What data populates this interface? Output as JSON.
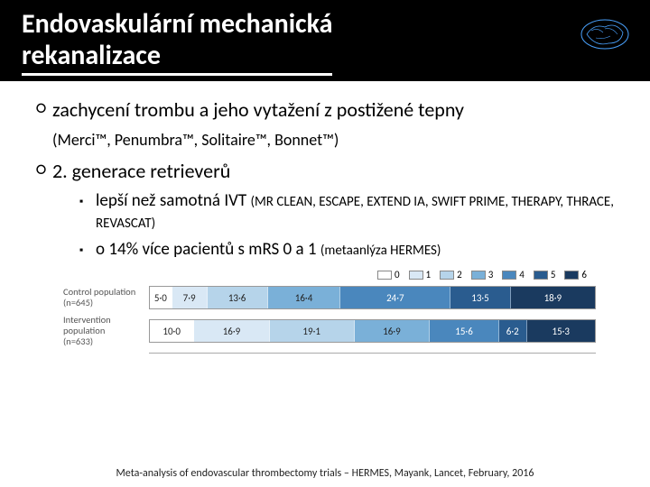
{
  "header": {
    "title_line1": "Endovaskulární mechanická",
    "title_line2": "rekanalizace"
  },
  "brain_icon": {
    "stroke": "#4aa3ff",
    "bg": "#000000"
  },
  "bullets": {
    "b1_main": "zachycení trombu a jeho vytažení z postižené tepny",
    "b1_sub": "(Merci™, Penumbra™, Solitaire™, Bonnet™)",
    "b2_main": "2. generace retrieverů",
    "sq1_lead": "lepší než samotná IVT ",
    "sq1_small": "(MR CLEAN, ESCAPE, EXTEND IA, SWIFT PRIME, THERAPY, THRACE, REVASCAT)",
    "sq2_lead": "o 14% více pacientů s mRS 0 a 1 ",
    "sq2_small": "(metaanlýza HERMES)"
  },
  "chart": {
    "type": "stacked-bar-horizontal",
    "legend": [
      {
        "label": "0",
        "color": "#ffffff"
      },
      {
        "label": "1",
        "color": "#d9e8f5"
      },
      {
        "label": "2",
        "color": "#b6d4ea"
      },
      {
        "label": "3",
        "color": "#7ab0d8"
      },
      {
        "label": "4",
        "color": "#4a87bd"
      },
      {
        "label": "5",
        "color": "#2a5c8f"
      },
      {
        "label": "6",
        "color": "#1a3a5f"
      }
    ],
    "rows": [
      {
        "label_line1": "Control population",
        "label_line2": "(n=645)",
        "segments": [
          {
            "value": 5.0,
            "color": "#ffffff",
            "text": "5·0"
          },
          {
            "value": 7.9,
            "color": "#d9e8f5",
            "text": "7·9"
          },
          {
            "value": 13.6,
            "color": "#b6d4ea",
            "text": "13·6"
          },
          {
            "value": 16.4,
            "color": "#7ab0d8",
            "text": "16·4"
          },
          {
            "value": 24.7,
            "color": "#4a87bd",
            "text": "24·7"
          },
          {
            "value": 13.5,
            "color": "#2a5c8f",
            "text": "13·5"
          },
          {
            "value": 18.9,
            "color": "#1a3a5f",
            "text": "18·9"
          }
        ]
      },
      {
        "label_line1": "Intervention population",
        "label_line2": "(n=633)",
        "segments": [
          {
            "value": 10.0,
            "color": "#ffffff",
            "text": "10·0"
          },
          {
            "value": 16.9,
            "color": "#d9e8f5",
            "text": "16·9"
          },
          {
            "value": 19.1,
            "color": "#b6d4ea",
            "text": "19·1"
          },
          {
            "value": 16.9,
            "color": "#7ab0d8",
            "text": "16·9"
          },
          {
            "value": 15.6,
            "color": "#4a87bd",
            "text": "15·6"
          },
          {
            "value": 6.2,
            "color": "#2a5c8f",
            "text": "6·2"
          },
          {
            "value": 15.3,
            "color": "#1a3a5f",
            "text": "15·3"
          }
        ]
      }
    ],
    "background_color": "#ffffff",
    "font_size": 11,
    "label_font_size": 10.5,
    "label_color": "#555555"
  },
  "citation": "Meta-analysis of endovascular thrombectomy trials – HERMES, Mayank, Lancet, February, 2016"
}
